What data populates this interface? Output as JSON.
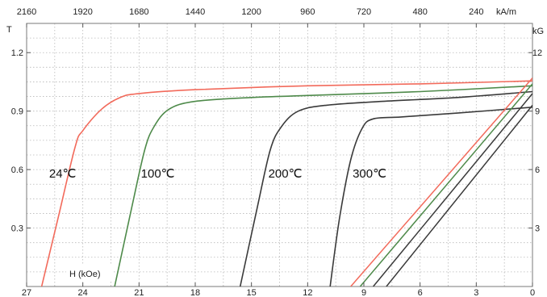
{
  "chart_data": {
    "type": "line",
    "title": "",
    "axes": {
      "bottom": {
        "label": "H (kOe)",
        "range": [
          27,
          0
        ],
        "ticks": [
          27,
          24,
          21,
          18,
          15,
          12,
          9,
          6,
          3,
          0
        ],
        "tick_labels": [
          "27",
          "24",
          "21",
          "18",
          "15",
          "12",
          "9",
          "6",
          "3",
          "0"
        ]
      },
      "top": {
        "unit": "kA/m",
        "range": [
          2160,
          0
        ],
        "ticks": [
          2160,
          1920,
          1680,
          1440,
          1200,
          960,
          720,
          480,
          240
        ],
        "tick_labels": [
          "2160",
          "1920",
          "1680",
          "1440",
          "1200",
          "960",
          "720",
          "480",
          "240"
        ]
      },
      "left": {
        "unit": "T",
        "range": [
          0,
          1.35
        ],
        "ticks": [
          0.3,
          0.6,
          0.9,
          1.2
        ],
        "tick_labels": [
          "0.3",
          "0.6",
          "0.9",
          "1.2"
        ]
      },
      "right": {
        "unit": "kG",
        "range": [
          0,
          13.5
        ],
        "ticks": [
          3,
          6,
          9,
          12
        ],
        "tick_labels": [
          "3",
          "6",
          "9",
          "12"
        ]
      }
    },
    "grid": true,
    "grid_style": "dotted",
    "colors": {
      "24C": "#f26a5b",
      "100C": "#4e8a4a",
      "200C": "#3a3a3a",
      "300C": "#3a3a3a",
      "grid": "#b8b8b8"
    },
    "series": [
      {
        "name": "24℃",
        "group": "intrinsic",
        "color_key": "24C",
        "label_at": [
          25.8,
          0.56
        ],
        "points": [
          [
            26.2,
            0.0
          ],
          [
            25.3,
            0.36
          ],
          [
            24.4,
            0.72
          ],
          [
            24.0,
            0.8
          ],
          [
            23.0,
            0.91
          ],
          [
            22.0,
            0.97
          ],
          [
            21.0,
            0.99
          ],
          [
            18.0,
            1.01
          ],
          [
            12.0,
            1.03
          ],
          [
            6.0,
            1.04
          ],
          [
            0.0,
            1.055
          ]
        ]
      },
      {
        "name": "100℃",
        "group": "intrinsic",
        "color_key": "100C",
        "label_at": [
          20.9,
          0.56
        ],
        "points": [
          [
            22.3,
            0.0
          ],
          [
            21.4,
            0.4
          ],
          [
            20.7,
            0.7
          ],
          [
            20.2,
            0.82
          ],
          [
            19.4,
            0.91
          ],
          [
            18.0,
            0.95
          ],
          [
            15.0,
            0.97
          ],
          [
            12.0,
            0.98
          ],
          [
            6.0,
            1.0
          ],
          [
            0.0,
            1.03
          ]
        ]
      },
      {
        "name": "200℃",
        "group": "intrinsic",
        "color_key": "200C",
        "label_at": [
          14.1,
          0.56
        ],
        "points": [
          [
            15.6,
            0.0
          ],
          [
            14.7,
            0.4
          ],
          [
            14.0,
            0.7
          ],
          [
            13.4,
            0.82
          ],
          [
            12.5,
            0.9
          ],
          [
            11.0,
            0.93
          ],
          [
            8.0,
            0.95
          ],
          [
            4.0,
            0.97
          ],
          [
            0.0,
            1.0
          ]
        ]
      },
      {
        "name": "300℃",
        "group": "intrinsic",
        "color_key": "300C",
        "label_at": [
          9.6,
          0.56
        ],
        "points": [
          [
            10.8,
            0.0
          ],
          [
            10.3,
            0.35
          ],
          [
            9.7,
            0.65
          ],
          [
            9.1,
            0.81
          ],
          [
            8.5,
            0.86
          ],
          [
            7.0,
            0.87
          ],
          [
            4.0,
            0.89
          ],
          [
            0.0,
            0.92
          ]
        ]
      },
      {
        "name": "",
        "group": "normal",
        "color_key": "24C",
        "points": [
          [
            9.7,
            0.0
          ],
          [
            0.0,
            1.07
          ]
        ]
      },
      {
        "name": "",
        "group": "normal",
        "color_key": "100C",
        "points": [
          [
            9.2,
            0.0
          ],
          [
            0.0,
            1.04
          ]
        ]
      },
      {
        "name": "",
        "group": "normal",
        "color_key": "200C",
        "points": [
          [
            8.5,
            0.0
          ],
          [
            0.0,
            0.99
          ]
        ]
      },
      {
        "name": "",
        "group": "normal",
        "color_key": "300C",
        "points": [
          [
            7.8,
            0.0
          ],
          [
            0.0,
            0.93
          ]
        ]
      }
    ]
  }
}
